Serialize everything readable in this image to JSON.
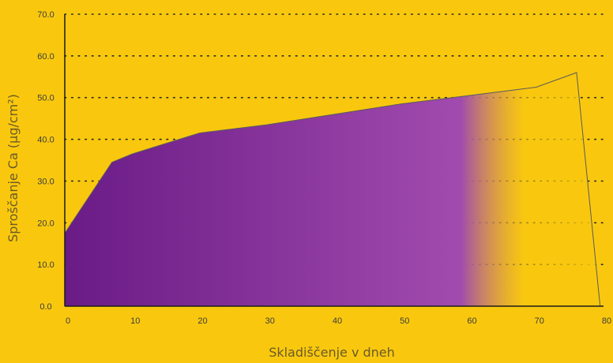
{
  "colors": {
    "background": "#F9C80E",
    "fill_start": "#6A1B86",
    "fill_mid": "#A14BAE",
    "fill_end": "#F9C80E",
    "axis": "#1a1a1a",
    "grid": "#2b2b2b",
    "text": "#6a5a2a"
  },
  "chart_data": {
    "type": "area",
    "title": "",
    "xlabel": "Skladiščenje v dneh",
    "ylabel": "Sproščanje Ca (µg/cm²)",
    "xlim": [
      0,
      80
    ],
    "ylim": [
      0,
      70
    ],
    "grid": "horizontal-dotted",
    "x_ticks": [
      "0",
      "10",
      "20",
      "30",
      "40",
      "50",
      "60",
      "70",
      "80"
    ],
    "y_ticks": [
      "0.0",
      "10.0",
      "20.0",
      "30.0",
      "40.0",
      "50.0",
      "60.0",
      "70.0"
    ],
    "series": [
      {
        "x": [
          0,
          7,
          10,
          14,
          20,
          30,
          40,
          50,
          60,
          70,
          76,
          79.5
        ],
        "y": [
          17.5,
          34.5,
          36.5,
          38.5,
          41.5,
          43.5,
          46,
          48.5,
          50.5,
          52.5,
          56,
          0
        ]
      }
    ]
  }
}
